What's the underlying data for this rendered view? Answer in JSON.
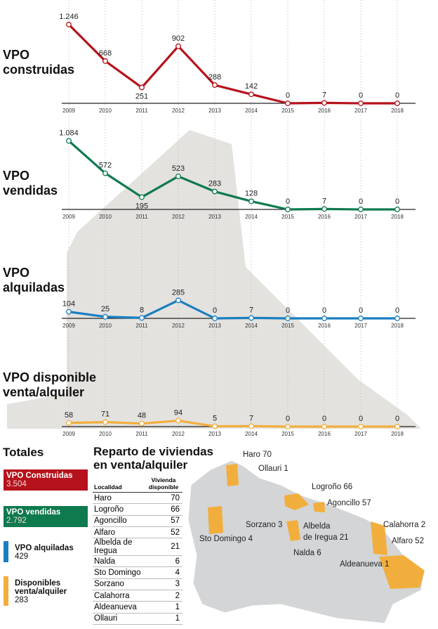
{
  "chart_data": [
    {
      "type": "line",
      "title": "VPO construidas",
      "color": "#b5121b",
      "categories": [
        "2009",
        "2010",
        "2011",
        "2012",
        "2013",
        "2014",
        "2015",
        "2016",
        "2017",
        "2018"
      ],
      "values": [
        1246,
        668,
        251,
        902,
        288,
        142,
        0,
        7,
        0,
        0
      ],
      "value_labels": [
        "1.246",
        "668",
        "251",
        "902",
        "288",
        "142",
        "0",
        "7",
        "0",
        "0"
      ]
    },
    {
      "type": "line",
      "title": "VPO vendidas",
      "color": "#0e7a4e",
      "categories": [
        "2009",
        "2010",
        "2011",
        "2012",
        "2013",
        "2014",
        "2015",
        "2016",
        "2017",
        "2018"
      ],
      "values": [
        1084,
        572,
        195,
        523,
        283,
        128,
        0,
        7,
        0,
        0
      ],
      "value_labels": [
        "1.084",
        "572",
        "195",
        "523",
        "283",
        "128",
        "0",
        "7",
        "0",
        "0"
      ]
    },
    {
      "type": "line",
      "title": "VPO alquiladas",
      "color": "#1a7fc1",
      "categories": [
        "2009",
        "2010",
        "2011",
        "2012",
        "2013",
        "2014",
        "2015",
        "2016",
        "2017",
        "2018"
      ],
      "values": [
        104,
        25,
        8,
        285,
        0,
        7,
        0,
        0,
        0,
        0
      ]
    },
    {
      "type": "line",
      "title": "VPO disponible venta/alquiler",
      "color": "#f2ae3c",
      "categories": [
        "2009",
        "2010",
        "2011",
        "2012",
        "2013",
        "2014",
        "2015",
        "2016",
        "2017",
        "2018"
      ],
      "values": [
        58,
        71,
        48,
        94,
        5,
        7,
        0,
        0,
        0,
        0
      ]
    }
  ],
  "totals": {
    "title": "Totales",
    "items": [
      {
        "label": "VPO Construidas",
        "value": "3.504",
        "color": "#b5121b"
      },
      {
        "label": "VPO vendidas",
        "value": "2.792",
        "color": "#0e7a4e"
      },
      {
        "label": "VPO alquiladas",
        "value": "429",
        "color": "#1a7fc1"
      },
      {
        "label": "Disponibles venta/alquiler",
        "value": "283",
        "color": "#f2ae3c"
      }
    ]
  },
  "table": {
    "title": "Reparto de viviendas en venta/alquiler",
    "header": [
      "Localidad",
      "Vivienda disponible"
    ],
    "rows": [
      [
        "Haro",
        70
      ],
      [
        "Logroño",
        66
      ],
      [
        "Agoncillo",
        57
      ],
      [
        "Alfaro",
        52
      ],
      [
        "Albelda de Iregua",
        21
      ],
      [
        "Nalda",
        6
      ],
      [
        "Sto Domingo",
        4
      ],
      [
        "Sorzano",
        3
      ],
      [
        "Calahorra",
        2
      ],
      [
        "Aldeanueva",
        1
      ],
      [
        "Ollauri",
        1
      ]
    ]
  },
  "map": {
    "labels": [
      "Haro 70",
      "Ollauri 1",
      "Logroño 66",
      "Agoncillo 57",
      "Sorzano 3",
      "Albelda",
      "de Iregua 21",
      "Nalda 6",
      "Sto Domingo 4",
      "Calahorra 2",
      "Alfaro 52",
      "Aldeanueva 1"
    ]
  }
}
